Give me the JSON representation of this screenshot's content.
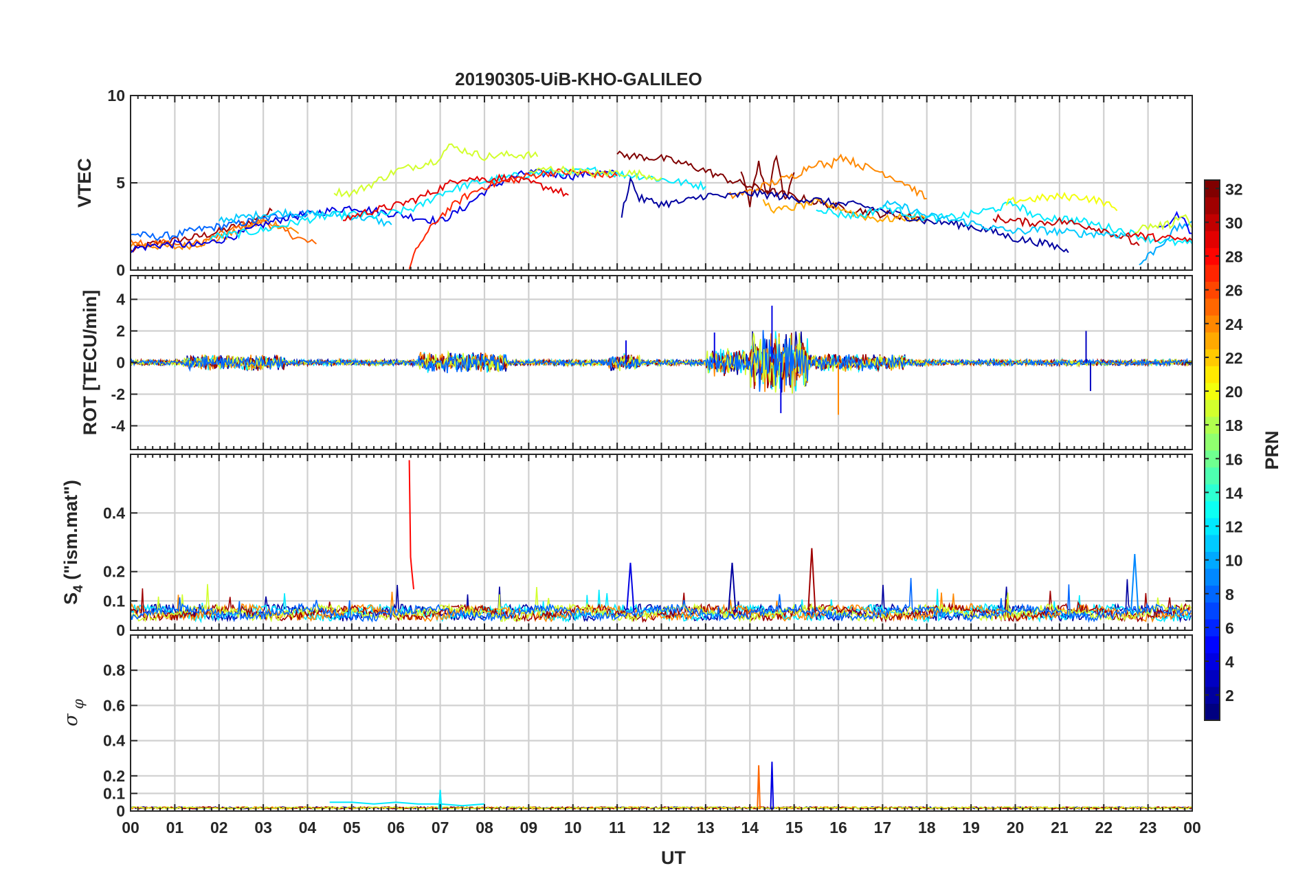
{
  "chart_data": {
    "type": "line",
    "title": "20190305-UiB-KHO-GALILEO",
    "xlabel": "UT",
    "x_tick_labels": [
      "00",
      "01",
      "02",
      "03",
      "04",
      "05",
      "06",
      "07",
      "08",
      "09",
      "10",
      "11",
      "12",
      "13",
      "14",
      "15",
      "16",
      "17",
      "18",
      "19",
      "20",
      "21",
      "22",
      "23",
      "00"
    ],
    "xlim": [
      0,
      24
    ],
    "colorbar": {
      "label": "PRN",
      "range": [
        1,
        32
      ],
      "tick_labels": [
        "2",
        "4",
        "6",
        "8",
        "10",
        "12",
        "14",
        "16",
        "18",
        "20",
        "22",
        "24",
        "26",
        "28",
        "30",
        "32"
      ],
      "colormap": "jet"
    },
    "panels": [
      {
        "id": "vtec",
        "ylabel": "VTEC",
        "ylim": [
          0,
          10
        ],
        "y_tick_labels": [
          "0",
          "5",
          "10"
        ],
        "y_ticks": [
          0,
          5,
          10
        ],
        "series": [
          {
            "prn": 31,
            "x": [
              0,
              0.5,
              1,
              1.5,
              2,
              2.5,
              3,
              3.2
            ],
            "y": [
              1.1,
              1.5,
              1.7,
              1.9,
              2.2,
              2.6,
              3.1,
              3.4
            ]
          },
          {
            "prn": 25,
            "x": [
              0,
              0.4,
              0.8,
              1.2,
              1.6,
              2,
              2.5,
              3,
              3.5,
              4,
              4.2
            ],
            "y": [
              1.8,
              1.5,
              1.6,
              1.4,
              1.6,
              2,
              2.5,
              2.8,
              2.2,
              1.6,
              1.5
            ]
          },
          {
            "prn": 24,
            "x": [
              0,
              0.5,
              1,
              1.5,
              2,
              2.5,
              3,
              3.5,
              3.8
            ],
            "y": [
              1.5,
              1.4,
              1.3,
              1.5,
              1.8,
              2.3,
              2.8,
              2.5,
              2.1
            ]
          },
          {
            "prn": 8,
            "x": [
              0,
              0.5,
              1,
              1.5,
              2,
              2.5,
              3,
              3.5,
              4
            ],
            "y": [
              2.1,
              1.9,
              2,
              2.3,
              2.5,
              2.7,
              2.9,
              3.2,
              3.2
            ]
          },
          {
            "prn": 4,
            "x": [
              0,
              0.5,
              1,
              1.5,
              2,
              2.5,
              3,
              3.5,
              4,
              4.5,
              5,
              5.5,
              6,
              6.5,
              7,
              7.5,
              8,
              8.5,
              9,
              9.5,
              10,
              10.5,
              11
            ],
            "y": [
              1.2,
              1.4,
              1.5,
              1.4,
              1.7,
              2.1,
              2.6,
              3,
              3.2,
              3.4,
              3.6,
              3.4,
              3.2,
              3,
              2.8,
              3.5,
              4.5,
              5.2,
              5.6,
              5.5,
              5.4,
              5.6,
              5.5
            ]
          },
          {
            "prn": 11,
            "x": [
              2,
              2.5,
              3,
              3.5,
              4,
              4.5,
              5,
              5.5,
              5.9
            ],
            "y": [
              2.9,
              3,
              3.2,
              3.3,
              3.2,
              3.2,
              3.1,
              2.9,
              2.6
            ]
          },
          {
            "prn": 12,
            "x": [
              1.8,
              2.5,
              3,
              3.5,
              4,
              4.5,
              5,
              5.5,
              6,
              6.5,
              7,
              7.5,
              8,
              8.5,
              9,
              9.5,
              10,
              10.5,
              11,
              11.5,
              12,
              12.5,
              13
            ],
            "y": [
              1.9,
              2.1,
              2.3,
              2.6,
              2.9,
              3.1,
              3.2,
              3.1,
              3.3,
              3.6,
              4.4,
              4.8,
              5.1,
              5.3,
              5.5,
              5.6,
              5.6,
              5.7,
              5.5,
              5.4,
              5.2,
              5,
              4.8
            ]
          },
          {
            "prn": 19,
            "x": [
              4.6,
              5,
              5.5,
              6,
              6.5,
              6.9,
              7.2,
              7.5,
              8,
              8.5,
              9,
              9.2
            ],
            "y": [
              4.5,
              4.4,
              5,
              5.7,
              6,
              6.3,
              7.1,
              6.9,
              6.5,
              6.6,
              6.6,
              6.5
            ]
          },
          {
            "prn": 29,
            "x": [
              4.8,
              5.3,
              6,
              6.5,
              7,
              7.5,
              8,
              8.5,
              9,
              9.5,
              9.9
            ],
            "y": [
              2.9,
              3.3,
              3.7,
              4.1,
              4.7,
              5.3,
              5.2,
              5.3,
              5,
              4.7,
              4.3
            ]
          },
          {
            "prn": 27,
            "x": [
              6.3,
              6.5,
              7,
              7.5,
              8,
              8.5,
              9,
              9.5,
              10,
              10.5,
              11
            ],
            "y": [
              0,
              1.4,
              3.1,
              4.1,
              4.8,
              5.1,
              5.4,
              5.6,
              5.6,
              5.5,
              5.4
            ]
          },
          {
            "prn": 19,
            "x": [
              9,
              9.5,
              10,
              10.5,
              11,
              11.5,
              12
            ],
            "y": [
              5.6,
              5.8,
              5.7,
              5.5,
              5.6,
              5.5,
              5.3
            ]
          },
          {
            "prn": 32,
            "x": [
              11,
              11.5,
              12,
              12.5,
              13,
              13.5,
              14,
              14.5,
              15,
              15.5,
              16,
              16.5,
              17,
              17.5,
              18
            ],
            "y": [
              6.6,
              6.5,
              6.4,
              6.1,
              5.7,
              5.2,
              4.8,
              4.5,
              4.2,
              3.9,
              3.6,
              3.4,
              3.2,
              3.1,
              3
            ]
          },
          {
            "prn": 32,
            "x": [
              13.8,
              14,
              14.2,
              14.4,
              14.6,
              14.8,
              15
            ],
            "y": [
              5.8,
              3.8,
              6.2,
              4.2,
              6.6,
              3.9,
              5.6
            ]
          },
          {
            "prn": 24,
            "x": [
              13.5,
              14,
              14.5,
              15,
              15.5,
              15.8,
              16,
              16.5,
              17,
              17.5,
              18
            ],
            "y": [
              4.2,
              4.5,
              5,
              5.4,
              6.2,
              5.9,
              6.6,
              6,
              5.6,
              5,
              4.1
            ]
          },
          {
            "prn": 23,
            "x": [
              14.3,
              14.6,
              15,
              15.5,
              16,
              16.5,
              17,
              17.5,
              18
            ],
            "y": [
              3.9,
              3.4,
              3.6,
              3.9,
              3.6,
              3.1,
              2.9,
              3,
              2.9
            ]
          },
          {
            "prn": 2,
            "x": [
              11.1,
              11.3,
              11.5,
              12,
              12.5,
              13,
              13.5,
              14,
              14.5,
              15,
              15.5,
              16,
              16.5,
              17,
              17.5,
              18,
              18.5,
              19,
              19.5,
              20,
              20.5,
              21,
              21.2
            ],
            "y": [
              3.2,
              5.2,
              4.1,
              3.8,
              3.9,
              4.3,
              4.2,
              4.4,
              4.3,
              4.1,
              4,
              3.8,
              3.7,
              3.4,
              3.1,
              2.8,
              2.7,
              2.5,
              2.2,
              1.8,
              1.6,
              1.3,
              1
            ]
          },
          {
            "prn": 12,
            "x": [
              15.5,
              16,
              16.5,
              17,
              17.5,
              18,
              18.5,
              19,
              19.5,
              20,
              20.5,
              21,
              21.5,
              22,
              22.5,
              23,
              23.5,
              24
            ],
            "y": [
              3.6,
              3.2,
              3.1,
              3.6,
              3.3,
              3,
              3,
              3.2,
              3.5,
              3.8,
              3,
              3,
              2.8,
              2.5,
              2.2,
              1.8,
              1.6,
              1.5
            ]
          },
          {
            "prn": 20,
            "x": [
              19.8,
              20,
              20.5,
              21,
              21.5,
              22,
              22.3
            ],
            "y": [
              3.8,
              4,
              4.1,
              4.2,
              4.2,
              3.9,
              3.4
            ]
          },
          {
            "prn": 30,
            "x": [
              19.5,
              20,
              20.5,
              21,
              21.5,
              22,
              22.5,
              22.8
            ],
            "y": [
              3,
              2.8,
              2.7,
              2.8,
              2.6,
              2.3,
              1.8,
              1.4
            ]
          },
          {
            "prn": 11,
            "x": [
              17,
              17.5,
              18,
              18.5,
              19,
              19.5,
              20,
              20.5,
              21,
              21.5,
              22,
              22.5
            ],
            "y": [
              3.8,
              3.6,
              3.1,
              2.9,
              2.7,
              2.4,
              2.2,
              2.3,
              2.2,
              2.1,
              2.1,
              2
            ]
          },
          {
            "prn": 10,
            "x": [
              22.8,
              23,
              23.3,
              23.6,
              24
            ],
            "y": [
              0.3,
              0.8,
              1.5,
              2.3,
              2.8
            ]
          },
          {
            "prn": 5,
            "x": [
              23.2,
              23.5,
              23.7,
              24
            ],
            "y": [
              2.2,
              2.8,
              3.2,
              2.1
            ]
          },
          {
            "prn": 19,
            "x": [
              22.7,
              23,
              23.5,
              23.8,
              24
            ],
            "y": [
              2.3,
              2.5,
              2.6,
              3.3,
              2.4
            ]
          },
          {
            "prn": 29,
            "x": [
              22.5,
              23,
              23.5,
              24
            ],
            "y": [
              2.1,
              1.9,
              1.8,
              1.7
            ]
          }
        ]
      },
      {
        "id": "rot",
        "ylabel": "ROT [TECU/min]",
        "ylim": [
          -5.5,
          5.5
        ],
        "y_tick_labels": [
          "-4",
          "-2",
          "0",
          "2",
          "4"
        ],
        "y_ticks": [
          -4,
          -2,
          0,
          2,
          4
        ],
        "series": [
          {
            "prn": 4,
            "x": [
              11.2
            ],
            "y": [
              1.4
            ]
          },
          {
            "prn": 4,
            "x": [
              13.2
            ],
            "y": [
              1.9
            ]
          },
          {
            "prn": 4,
            "x": [
              14.5
            ],
            "y": [
              3.6
            ]
          },
          {
            "prn": 4,
            "x": [
              14.7
            ],
            "y": [
              -3.2
            ]
          },
          {
            "prn": 24,
            "x": [
              16
            ],
            "y": [
              -3.3
            ]
          },
          {
            "prn": 3,
            "x": [
              21.6
            ],
            "y": [
              2
            ]
          },
          {
            "prn": 3,
            "x": [
              21.7
            ],
            "y": [
              -1.8
            ]
          }
        ]
      },
      {
        "id": "s4",
        "ylabel": "S4 (\"ism.mat\")",
        "ylabel_main": "S",
        "ylabel_sub": "4",
        "ylabel_rest": " (\"ism.mat\")",
        "ylim": [
          0,
          0.6
        ],
        "y_tick_labels": [
          "0",
          "0.1",
          "0.2",
          "0.4"
        ],
        "y_ticks": [
          0,
          0.1,
          0.2,
          0.4
        ],
        "series": [
          {
            "prn": 28,
            "x": [
              6.3,
              6.33,
              6.36,
              6.4
            ],
            "y": [
              0.58,
              0.25,
              0.2,
              0.14
            ]
          },
          {
            "prn": 31,
            "x": [
              15.4
            ],
            "y": [
              0.28
            ]
          },
          {
            "prn": 4,
            "x": [
              11.3
            ],
            "y": [
              0.23
            ]
          },
          {
            "prn": 2,
            "x": [
              13.6
            ],
            "y": [
              0.23
            ]
          },
          {
            "prn": 9,
            "x": [
              22.7
            ],
            "y": [
              0.26
            ]
          }
        ]
      },
      {
        "id": "sigma",
        "ylabel": "σ φ",
        "ylabel_main": "σ",
        "ylabel_sub": "φ",
        "ylim": [
          0,
          1
        ],
        "y_tick_labels": [
          "0",
          "0.1",
          "0.2",
          "0.4",
          "0.6",
          "0.8"
        ],
        "y_ticks": [
          0,
          0.1,
          0.2,
          0.4,
          0.6,
          0.8
        ],
        "series": [
          {
            "prn": 4,
            "x": [
              14.5
            ],
            "y": [
              0.28
            ]
          },
          {
            "prn": 25,
            "x": [
              14.2
            ],
            "y": [
              0.26
            ]
          },
          {
            "prn": 12,
            "x": [
              7
            ],
            "y": [
              0.12
            ]
          },
          {
            "prn": 12,
            "x": [
              4.5,
              5,
              5.5,
              6,
              6.5,
              7,
              7.5,
              8
            ],
            "y": [
              0.05,
              0.05,
              0.04,
              0.05,
              0.04,
              0.04,
              0.03,
              0.04
            ]
          }
        ]
      }
    ]
  }
}
